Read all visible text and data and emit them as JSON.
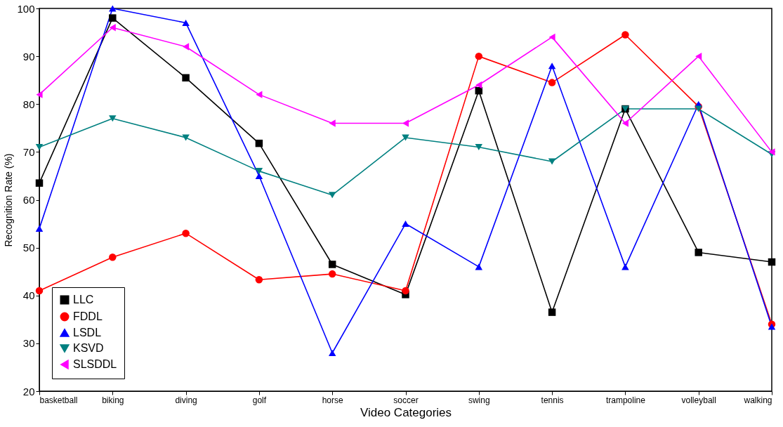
{
  "chart_data": {
    "type": "line",
    "xlabel": "Video Categories",
    "ylabel": "Recognition Rate (%)",
    "categories": [
      "basketball",
      "biking",
      "diving",
      "golf",
      "horse",
      "soccer",
      "swing",
      "tennis",
      "trampoline",
      "volleyball",
      "walking"
    ],
    "ylim": [
      20,
      100
    ],
    "yticks": [
      20,
      30,
      40,
      50,
      60,
      70,
      80,
      90,
      100
    ],
    "grid": false,
    "legend": "bottom left",
    "line_style": "solid",
    "series": [
      {
        "name": "LLC",
        "color": "#000000",
        "marker": "square",
        "values": [
          63.5,
          98,
          85.5,
          71.8,
          46.5,
          40.2,
          82.8,
          36.5,
          79,
          49,
          47
        ]
      },
      {
        "name": "FDDL",
        "color": "#ff0000",
        "marker": "circle",
        "values": [
          41,
          48,
          53,
          43.3,
          44.5,
          41,
          90,
          84.5,
          94.5,
          79.5,
          34
        ]
      },
      {
        "name": "LSDL",
        "color": "#0000ff",
        "marker": "triangle-up",
        "values": [
          54,
          100,
          97,
          65,
          28,
          55,
          46,
          88,
          46,
          80,
          33.5
        ]
      },
      {
        "name": "KSVD",
        "color": "#008080",
        "marker": "triangle-down",
        "values": [
          71,
          77,
          73,
          66,
          61,
          73,
          71,
          68,
          79,
          79,
          69.5
        ]
      },
      {
        "name": "SLSDDL",
        "color": "#ff00ff",
        "marker": "triangle-left",
        "values": [
          82,
          96,
          92,
          82,
          76,
          76,
          84,
          94,
          76,
          90,
          70
        ]
      }
    ]
  }
}
